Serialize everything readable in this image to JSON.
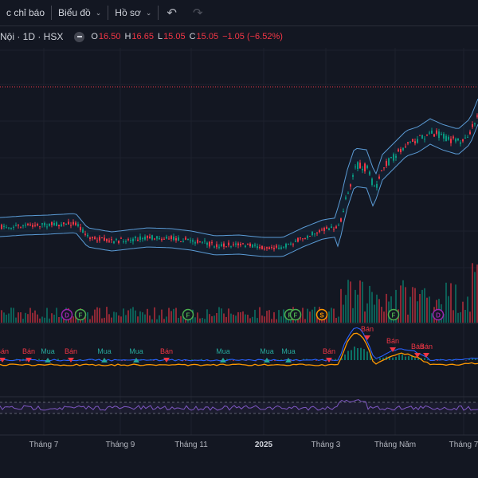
{
  "toolbar": {
    "indicators_label": "c chỉ báo",
    "chart_label": "Biểu đồ",
    "profile_label": "Hồ sơ",
    "undo_icon": "undo-icon",
    "redo_icon": "redo-icon"
  },
  "legend": {
    "symbol": "Nội · 1D · HSX",
    "open_label": "O",
    "open": "16.50",
    "high_label": "H",
    "high": "16.65",
    "low_label": "L",
    "low": "15.05",
    "close_label": "C",
    "close": "15.05",
    "change": "−1.05 (−6.52%)",
    "down_color": "#f23645",
    "up_color": "#089981"
  },
  "markers": {
    "events": [
      {
        "letter": "D",
        "color": "#9c27b0"
      },
      {
        "letter": "F",
        "color": "#4caf50"
      },
      {
        "letter": "F",
        "color": "#4caf50"
      },
      {
        "letter": "F",
        "color": "#4caf50"
      },
      {
        "letter": "F",
        "color": "#4caf50"
      },
      {
        "letter": "S",
        "color": "#ff9800"
      },
      {
        "letter": "F",
        "color": "#4caf50"
      },
      {
        "letter": "D",
        "color": "#9c27b0"
      }
    ],
    "signals": [
      {
        "text": "Bán",
        "type": "sell"
      },
      {
        "text": "Bán",
        "type": "sell"
      },
      {
        "text": "Mua",
        "type": "buy"
      },
      {
        "text": "Bán",
        "type": "sell"
      },
      {
        "text": "Mua",
        "type": "buy"
      },
      {
        "text": "Mua",
        "type": "buy"
      },
      {
        "text": "Bán",
        "type": "sell"
      },
      {
        "text": "Mua",
        "type": "buy"
      },
      {
        "text": "Mua",
        "type": "buy"
      },
      {
        "text": "Mua",
        "type": "buy"
      },
      {
        "text": "Bán",
        "type": "sell"
      },
      {
        "text": "Bán",
        "type": "sell"
      },
      {
        "text": "Bán",
        "type": "sell"
      },
      {
        "text": "Bán",
        "type": "sell"
      },
      {
        "text": "Bán",
        "type": "sell"
      }
    ]
  },
  "time_axis": [
    "Tháng 7",
    "Tháng 9",
    "Tháng 11",
    "2025",
    "Tháng 3",
    "Tháng Năm",
    "Tháng 7"
  ]
}
